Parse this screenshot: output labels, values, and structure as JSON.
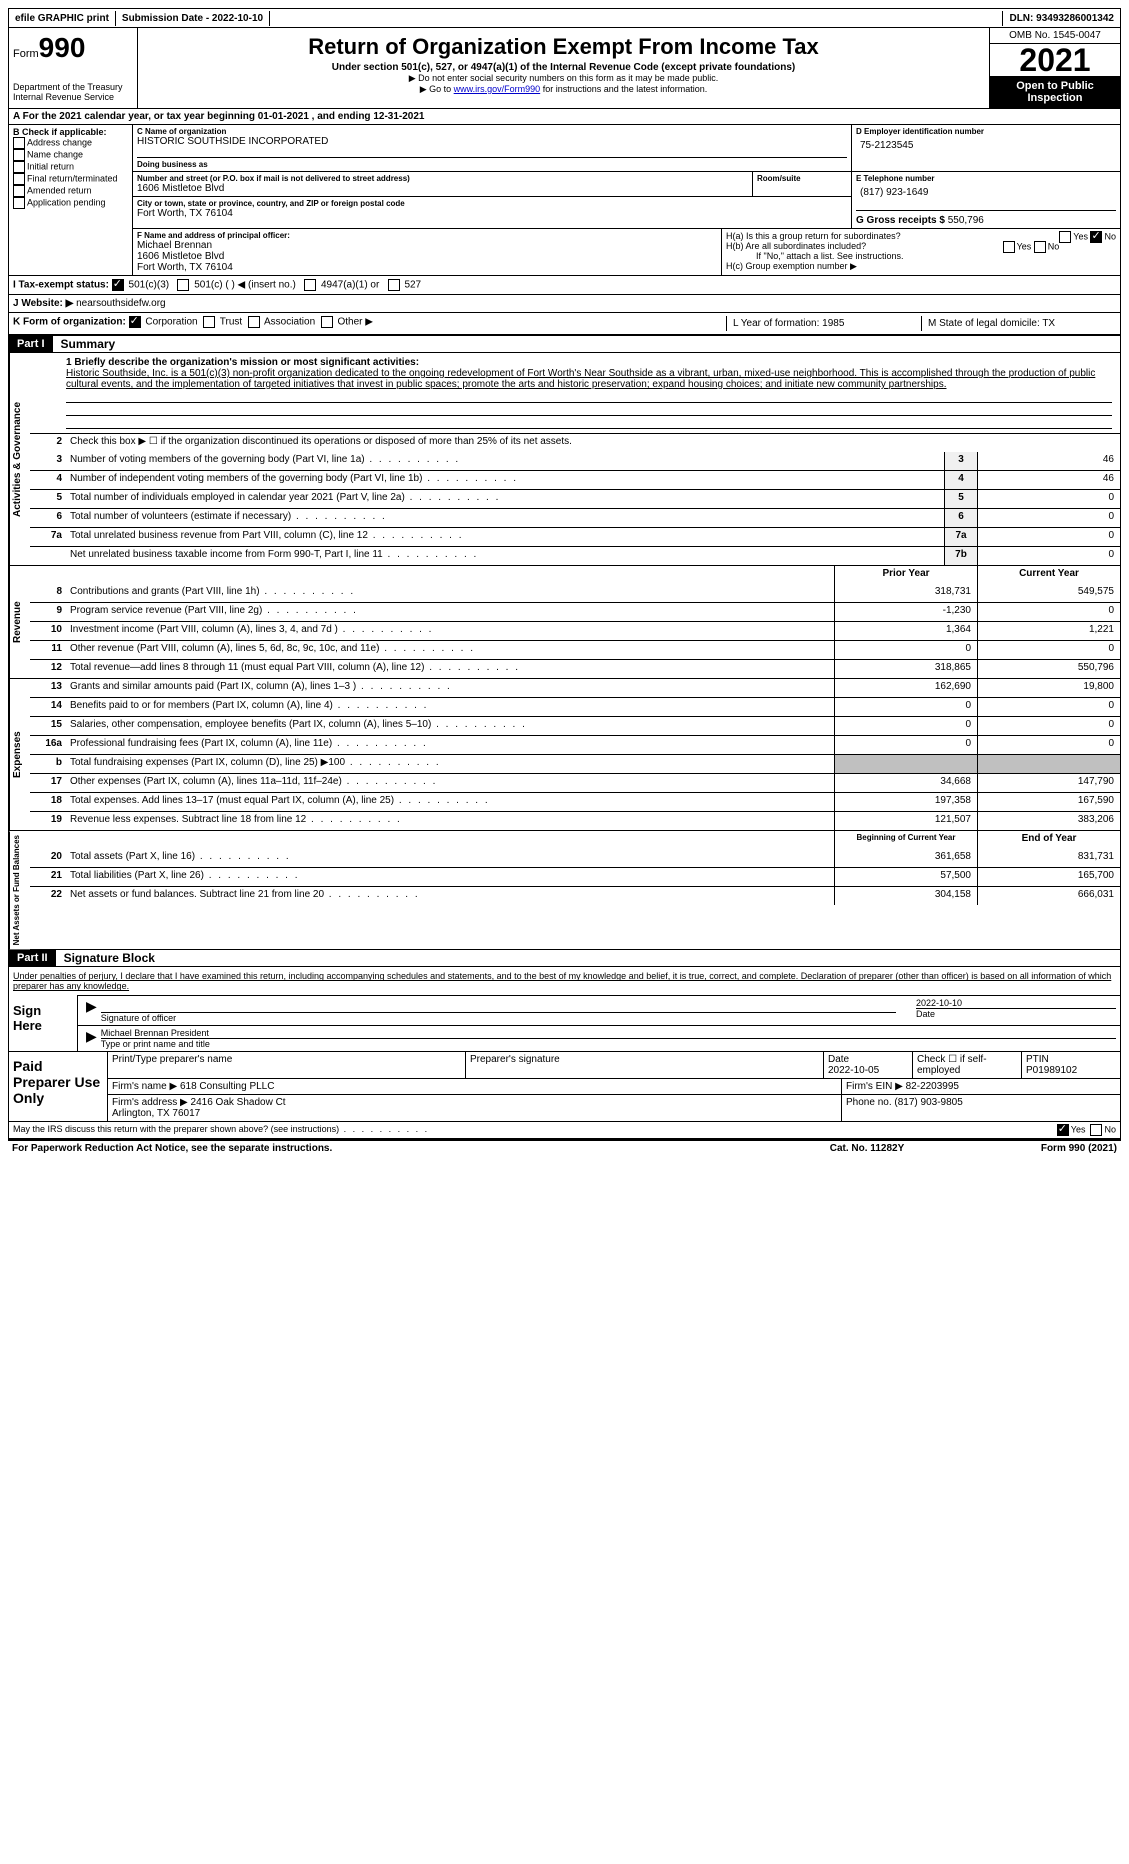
{
  "top": {
    "efile": "efile GRAPHIC print",
    "submission": "Submission Date - 2022-10-10",
    "dln": "DLN: 93493286001342"
  },
  "header": {
    "form_label": "Form",
    "form_num": "990",
    "dept": "Department of the Treasury\nInternal Revenue Service",
    "title": "Return of Organization Exempt From Income Tax",
    "subtitle": "Under section 501(c), 527, or 4947(a)(1) of the Internal Revenue Code (except private foundations)",
    "arrow1": "▶ Do not enter social security numbers on this form as it may be made public.",
    "arrow2_pre": "▶ Go to ",
    "arrow2_link": "www.irs.gov/Form990",
    "arrow2_post": " for instructions and the latest information.",
    "omb": "OMB No. 1545-0047",
    "year": "2021",
    "open": "Open to Public Inspection"
  },
  "rowA": {
    "text": "A For the 2021 calendar year, or tax year beginning 01-01-2021    , and ending 12-31-2021"
  },
  "boxB": {
    "label": "B Check if applicable:",
    "items": [
      "Address change",
      "Name change",
      "Initial return",
      "Final return/terminated",
      "Amended return",
      "Application pending"
    ]
  },
  "boxC": {
    "name_label": "C Name of organization",
    "name": "HISTORIC SOUTHSIDE INCORPORATED",
    "dba_label": "Doing business as",
    "street_label": "Number and street (or P.O. box if mail is not delivered to street address)",
    "street": "1606 Mistletoe Blvd",
    "room_label": "Room/suite",
    "city_label": "City or town, state or province, country, and ZIP or foreign postal code",
    "city": "Fort Worth, TX  76104"
  },
  "boxD": {
    "label": "D Employer identification number",
    "value": "75-2123545"
  },
  "boxE": {
    "label": "E Telephone number",
    "value": "(817) 923-1649"
  },
  "boxF": {
    "label": "F Name and address of principal officer:",
    "name": "Michael Brennan",
    "addr1": "1606 Mistletoe Blvd",
    "addr2": "Fort Worth, TX  76104"
  },
  "boxG": {
    "label": "G Gross receipts $",
    "value": "550,796"
  },
  "boxH": {
    "ha": "H(a)  Is this a group return for subordinates?",
    "hb": "H(b)  Are all subordinates included?",
    "hb_note": "If \"No,\" attach a list. See instructions.",
    "hc": "H(c)  Group exemption number ▶"
  },
  "rowI": {
    "label": "I   Tax-exempt status:",
    "opts": [
      "501(c)(3)",
      "501(c) (  ) ◀ (insert no.)",
      "4947(a)(1) or",
      "527"
    ]
  },
  "rowJ": {
    "label": "J   Website: ▶",
    "value": "nearsouthsidefw.org"
  },
  "rowK": {
    "label": "K Form of organization:",
    "opts": [
      "Corporation",
      "Trust",
      "Association",
      "Other ▶"
    ],
    "L": "L Year of formation: 1985",
    "M": "M State of legal domicile: TX"
  },
  "part1": {
    "header": "Part I",
    "title": "Summary",
    "mission_label": "1  Briefly describe the organization's mission or most significant activities:",
    "mission": "Historic Southside, Inc. is a 501(c)(3) non-profit organization dedicated to the ongoing redevelopment of Fort Worth's Near Southside as a vibrant, urban, mixed-use neighborhood. This is accomplished through the production of public cultural events, and the implementation of targeted initiatives that invest in public spaces; promote the arts and historic preservation; expand housing choices; and initiate new community partnerships.",
    "line2": "Check this box ▶ ☐  if the organization discontinued its operations or disposed of more than 25% of its net assets.",
    "governance": [
      {
        "n": "3",
        "t": "Number of voting members of the governing body (Part VI, line 1a)",
        "b": "3",
        "v": "46"
      },
      {
        "n": "4",
        "t": "Number of independent voting members of the governing body (Part VI, line 1b)",
        "b": "4",
        "v": "46"
      },
      {
        "n": "5",
        "t": "Total number of individuals employed in calendar year 2021 (Part V, line 2a)",
        "b": "5",
        "v": "0"
      },
      {
        "n": "6",
        "t": "Total number of volunteers (estimate if necessary)",
        "b": "6",
        "v": "0"
      },
      {
        "n": "7a",
        "t": "Total unrelated business revenue from Part VIII, column (C), line 12",
        "b": "7a",
        "v": "0"
      },
      {
        "n": "",
        "t": "Net unrelated business taxable income from Form 990-T, Part I, line 11",
        "b": "7b",
        "v": "0"
      }
    ],
    "col_prior": "Prior Year",
    "col_current": "Current Year",
    "revenue": [
      {
        "n": "8",
        "t": "Contributions and grants (Part VIII, line 1h)",
        "p": "318,731",
        "c": "549,575"
      },
      {
        "n": "9",
        "t": "Program service revenue (Part VIII, line 2g)",
        "p": "-1,230",
        "c": "0"
      },
      {
        "n": "10",
        "t": "Investment income (Part VIII, column (A), lines 3, 4, and 7d )",
        "p": "1,364",
        "c": "1,221"
      },
      {
        "n": "11",
        "t": "Other revenue (Part VIII, column (A), lines 5, 6d, 8c, 9c, 10c, and 11e)",
        "p": "0",
        "c": "0"
      },
      {
        "n": "12",
        "t": "Total revenue—add lines 8 through 11 (must equal Part VIII, column (A), line 12)",
        "p": "318,865",
        "c": "550,796"
      }
    ],
    "expenses": [
      {
        "n": "13",
        "t": "Grants and similar amounts paid (Part IX, column (A), lines 1–3 )",
        "p": "162,690",
        "c": "19,800"
      },
      {
        "n": "14",
        "t": "Benefits paid to or for members (Part IX, column (A), line 4)",
        "p": "0",
        "c": "0"
      },
      {
        "n": "15",
        "t": "Salaries, other compensation, employee benefits (Part IX, column (A), lines 5–10)",
        "p": "0",
        "c": "0"
      },
      {
        "n": "16a",
        "t": "Professional fundraising fees (Part IX, column (A), line 11e)",
        "p": "0",
        "c": "0"
      },
      {
        "n": "b",
        "t": "Total fundraising expenses (Part IX, column (D), line 25) ▶100",
        "p": "",
        "c": "",
        "grey": true
      },
      {
        "n": "17",
        "t": "Other expenses (Part IX, column (A), lines 11a–11d, 11f–24e)",
        "p": "34,668",
        "c": "147,790"
      },
      {
        "n": "18",
        "t": "Total expenses. Add lines 13–17 (must equal Part IX, column (A), line 25)",
        "p": "197,358",
        "c": "167,590"
      },
      {
        "n": "19",
        "t": "Revenue less expenses. Subtract line 18 from line 12",
        "p": "121,507",
        "c": "383,206"
      }
    ],
    "col_begin": "Beginning of Current Year",
    "col_end": "End of Year",
    "net": [
      {
        "n": "20",
        "t": "Total assets (Part X, line 16)",
        "p": "361,658",
        "c": "831,731"
      },
      {
        "n": "21",
        "t": "Total liabilities (Part X, line 26)",
        "p": "57,500",
        "c": "165,700"
      },
      {
        "n": "22",
        "t": "Net assets or fund balances. Subtract line 21 from line 20",
        "p": "304,158",
        "c": "666,031"
      }
    ]
  },
  "part2": {
    "header": "Part II",
    "title": "Signature Block",
    "perjury": "Under penalties of perjury, I declare that I have examined this return, including accompanying schedules and statements, and to the best of my knowledge and belief, it is true, correct, and complete. Declaration of preparer (other than officer) is based on all information of which preparer has any knowledge.",
    "sign_here": "Sign Here",
    "sig_officer": "Signature of officer",
    "sig_date": "2022-10-10",
    "date_label": "Date",
    "name_title": "Michael Brennan  President",
    "type_label": "Type or print name and title"
  },
  "prep": {
    "label": "Paid Preparer Use Only",
    "h1": "Print/Type preparer's name",
    "h2": "Preparer's signature",
    "h3_label": "Date",
    "h3": "2022-10-05",
    "h4": "Check ☐ if self-employed",
    "h5_label": "PTIN",
    "h5": "P01989102",
    "firm_label": "Firm's name    ▶",
    "firm": "618 Consulting PLLC",
    "ein_label": "Firm's EIN ▶",
    "ein": "82-2203995",
    "addr_label": "Firm's address ▶",
    "addr": "2416 Oak Shadow Ct\nArlington, TX  76017",
    "phone_label": "Phone no.",
    "phone": "(817) 903-9805"
  },
  "footer": {
    "discuss": "May the IRS discuss this return with the preparer shown above? (see instructions)",
    "paperwork": "For Paperwork Reduction Act Notice, see the separate instructions.",
    "cat": "Cat. No. 11282Y",
    "form": "Form 990 (2021)"
  }
}
